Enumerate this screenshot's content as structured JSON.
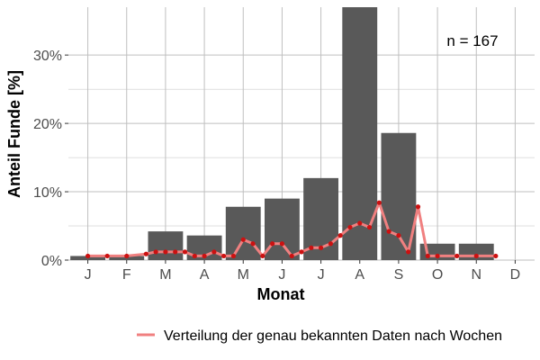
{
  "chart_data": {
    "type": "bar",
    "xlabel": "Monat",
    "ylabel": "Anteil Funde [%]",
    "categories": [
      "J",
      "F",
      "M",
      "A",
      "M",
      "J",
      "J",
      "A",
      "S",
      "O",
      "N",
      "D"
    ],
    "ylim": [
      0,
      37
    ],
    "yticks": [
      0,
      10,
      20,
      30
    ],
    "ytick_labels": [
      "0%",
      "10%",
      "20%",
      "30%"
    ],
    "grid": true,
    "annotation": "n = 167",
    "series": [
      {
        "type": "bar",
        "values": [
          0.6,
          0.6,
          4.2,
          3.6,
          7.8,
          9.0,
          12.0,
          37.1,
          18.6,
          2.4,
          2.4,
          0
        ]
      },
      {
        "type": "line",
        "name": "Verteilung der genau bekannten Daten nach Wochen",
        "x": [
          1,
          1.5,
          2,
          2.5,
          2.75,
          3,
          3.25,
          3.5,
          3.75,
          4,
          4.25,
          4.5,
          4.75,
          5,
          5.25,
          5.5,
          5.75,
          6,
          6.25,
          6.5,
          6.75,
          7,
          7.25,
          7.5,
          7.75,
          8,
          8.25,
          8.5,
          8.75,
          9,
          9.25,
          9.5,
          9.75,
          10,
          10.5,
          11,
          11.5
        ],
        "values": [
          0.6,
          0.6,
          0.6,
          0.9,
          1.2,
          1.2,
          1.2,
          1.2,
          0.6,
          0.6,
          1.2,
          0.6,
          0.6,
          3.0,
          2.4,
          0.6,
          2.4,
          2.4,
          0.6,
          1.2,
          1.8,
          1.8,
          2.4,
          3.6,
          4.8,
          5.4,
          4.8,
          8.4,
          4.2,
          3.6,
          1.2,
          7.8,
          0.6,
          0.6,
          0.6,
          0.6,
          0.6
        ]
      }
    ],
    "colors": {
      "bar": "#595959",
      "line": "#f08080",
      "points": "#cc1111",
      "grid": "#bfbfbf",
      "panel": "#ffffff"
    },
    "legend": {
      "position": "bottom-right",
      "label": "Verteilung der genau bekannten Daten nach Wochen"
    }
  }
}
